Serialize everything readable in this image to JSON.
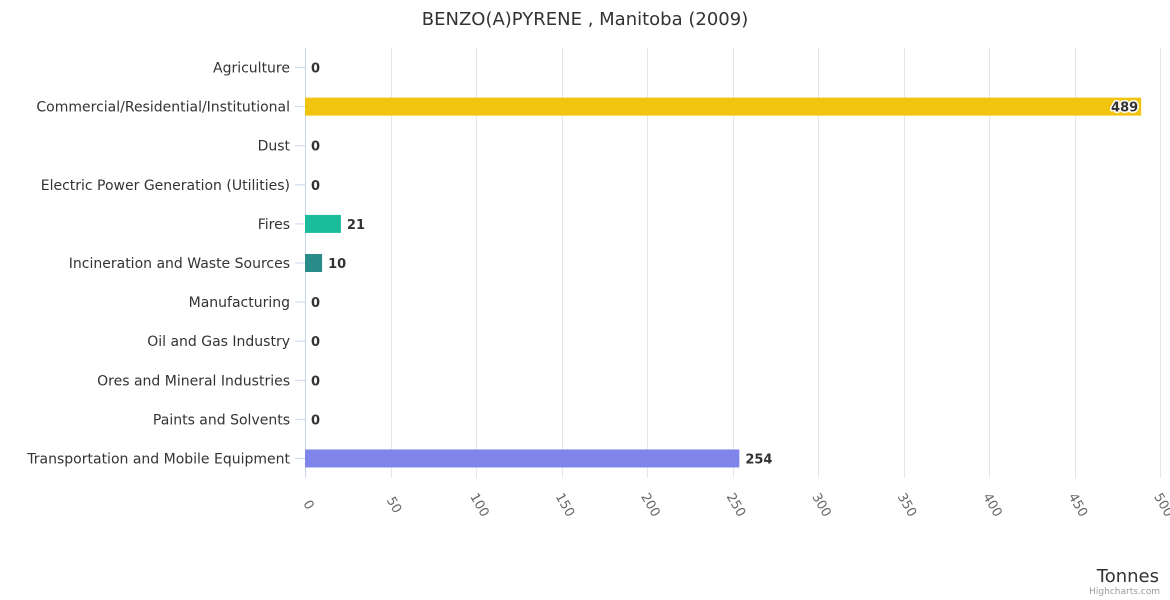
{
  "chart_data": {
    "type": "bar",
    "orientation": "horizontal",
    "title": "BENZO(A)PYRENE , Manitoba (2009)",
    "xlabel": "Tonnes",
    "ylabel": "",
    "categories": [
      "Agriculture",
      "Commercial/Residential/Institutional",
      "Dust",
      "Electric Power Generation (Utilities)",
      "Fires",
      "Incineration and Waste Sources",
      "Manufacturing",
      "Oil and Gas Industry",
      "Ores and Mineral Industries",
      "Paints and Solvents",
      "Transportation and Mobile Equipment"
    ],
    "values": [
      0,
      489,
      0,
      0,
      21,
      10,
      0,
      0,
      0,
      0,
      254
    ],
    "data_labels": [
      "0",
      "489",
      "0",
      "0",
      "21",
      "10",
      "0",
      "0",
      "0",
      "0",
      "254"
    ],
    "colors": [
      "#7cb5ec",
      "#f1c40f",
      "#2c3e50",
      "#95a5a6",
      "#1abc9c",
      "#2a8c8a",
      "#8e44ad",
      "#e67e22",
      "#34495e",
      "#c0392b",
      "#8085e9"
    ],
    "xlim": [
      0,
      500
    ],
    "ticks": [
      0,
      50,
      100,
      150,
      200,
      250,
      300,
      350,
      400,
      450,
      500
    ],
    "tick_labels": [
      "0",
      "50",
      "100",
      "150",
      "200",
      "250",
      "300",
      "350",
      "400",
      "450",
      "500"
    ],
    "grid": true
  },
  "credits": "Highcharts.com"
}
